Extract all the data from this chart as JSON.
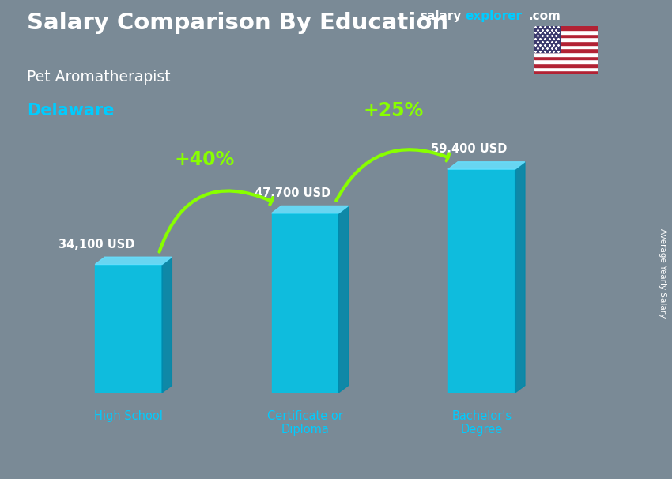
{
  "title": "Salary Comparison By Education",
  "subtitle": "Pet Aromatherapist",
  "location": "Delaware",
  "categories": [
    "High School",
    "Certificate or\nDiploma",
    "Bachelor's\nDegree"
  ],
  "values": [
    34100,
    47700,
    59400
  ],
  "labels": [
    "34,100 USD",
    "47,700 USD",
    "59,400 USD"
  ],
  "bar_color_main": "#00C4E8",
  "bar_color_side": "#0088AA",
  "bar_color_top": "#66E0FF",
  "pct_labels": [
    "+40%",
    "+25%"
  ],
  "pct_color": "#88FF00",
  "title_color": "#FFFFFF",
  "subtitle_color": "#FFFFFF",
  "location_color": "#00CCFF",
  "label_color": "#FFFFFF",
  "cat_label_color": "#00CCFF",
  "ylabel_text": "Average Yearly Salary",
  "brand_salary_color": "#FFFFFF",
  "brand_explorer_color": "#00CCFF",
  "brand_com_color": "#FFFFFF",
  "bg_color": "#7a8a96",
  "flag_stars_color": "#FFFFFF",
  "flag_stripe1": "#B22234",
  "flag_stripe2": "#FFFFFF",
  "flag_canton": "#3C3B6E"
}
